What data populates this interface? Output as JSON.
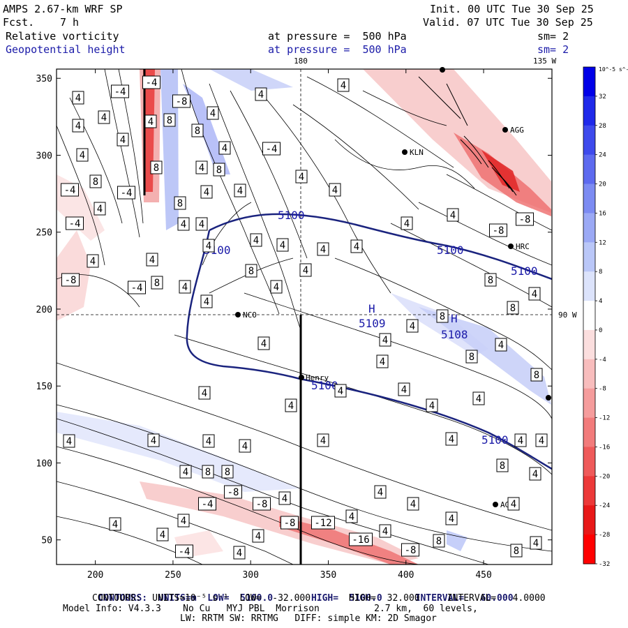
{
  "header": {
    "model_line": "AMPS 2.67-km WRF SP",
    "fcst_label": "Fcst.",
    "fcst_value": "7 h",
    "init_line": "Init. 00 UTC Tue 30 Sep 25",
    "valid_line": "Valid. 07 UTC Tue 30 Sep 25",
    "field1_name": "Relative vorticity",
    "field1_level": "at pressure =  500 hPa",
    "field1_smooth": "sm= 2",
    "field2_name": "Geopotential height",
    "field2_level": "at pressure =  500 hPa",
    "field2_smooth": "sm= 2"
  },
  "chart_data": {
    "type": "contour-map",
    "x_ticks": [
      200,
      250,
      300,
      350,
      400,
      450
    ],
    "y_ticks": [
      50,
      100,
      150,
      200,
      250,
      300,
      350
    ],
    "xlim": [
      175,
      494
    ],
    "ylim": [
      34,
      356
    ],
    "grid_labels": {
      "lon_180": "180",
      "lon_135w": "135 W",
      "lon_90w": "90 W"
    },
    "colorbar": {
      "unit": "10^-5 s^-1",
      "tick_labels": [
        "32",
        "28",
        "24",
        "20",
        "16",
        "12",
        "8",
        "4",
        "0",
        "-4",
        "-8",
        "-12",
        "-16",
        "-20",
        "-24",
        "-28",
        "-32"
      ],
      "colors": [
        "#0000e8",
        "#1f29ea",
        "#3e4aec",
        "#5d6aef",
        "#7c8bf2",
        "#9ba9f5",
        "#bac7f8",
        "#dce3fb",
        "#ffffff",
        "#fbdede",
        "#f8bdbd",
        "#f59c9c",
        "#f27b7b",
        "#ef5a5a",
        "#ec3939",
        "#e81818",
        "#ff0000"
      ]
    },
    "height_contours": [
      {
        "value": 5100,
        "label": "5100"
      }
    ],
    "highs": [
      {
        "label": "H",
        "value": "5109"
      },
      {
        "label": "H",
        "value": "5108"
      }
    ],
    "stations": [
      "NCO",
      "Henry",
      "KLN",
      "AGG",
      "HRC",
      "AG2"
    ],
    "contour_labels": [
      "4",
      "8",
      "-4",
      "-8",
      "-12",
      "-16"
    ]
  },
  "footer": {
    "line1_contours": "CONTOURS:",
    "line1_units": "UNITS=m",
    "line1_low": "LOW=  5100.0",
    "line1_high": "HIGH=  5100.0",
    "line1_interval": "INTERVAL=   60.000",
    "line2": "CONTOURS:  UNITS=10⁻⁵ s⁻¹  LOW=  -32.000       HIGH=  32.000     INTERVAL=   4.0000",
    "line3": "Model Info: V4.3.3    No Cu   MYJ PBL  Morrison          2.7 km,  60 levels,",
    "line4": "LW: RRTM SW: RRTMG   DIFF: simple KM: 2D Smagor"
  }
}
